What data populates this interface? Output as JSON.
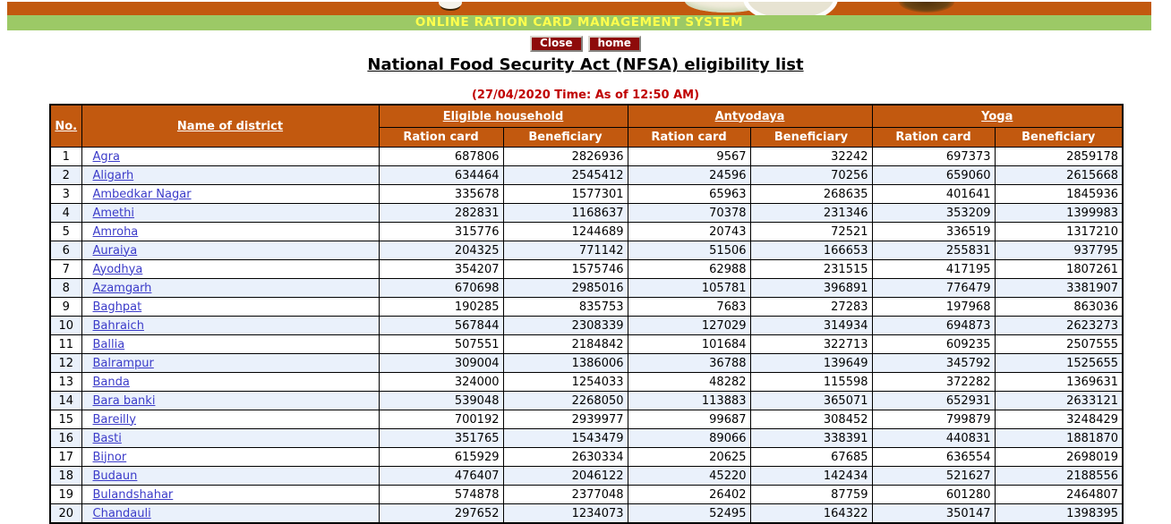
{
  "banner": {
    "system_title": "ONLINE RATION CARD MANAGEMENT SYSTEM"
  },
  "toolbar": {
    "close_label": "Close",
    "home_label": "home"
  },
  "page": {
    "title": "National Food Security Act (NFSA) eligibility list",
    "timestamp": "(27/04/2020 Time: As of 12:50 AM)"
  },
  "colors": {
    "banner_orange": "#c2590f",
    "banner_green": "#9cc966",
    "banner_text_yellow": "#ffff4d",
    "button_maroon": "#8e0b0b",
    "timestamp_red": "#c00000",
    "header_orange": "#c2590f",
    "row_alt_blue": "#eaf1fb",
    "link_blue": "#3b3bc9"
  },
  "table": {
    "columns": {
      "no": "No.",
      "district": "Name of district",
      "groups": [
        {
          "label": "Eligible household",
          "sub": [
            "Ration card",
            "Beneficiary"
          ]
        },
        {
          "label": "Antyodaya",
          "sub": [
            "Ration card",
            "Beneficiary"
          ]
        },
        {
          "label": "Yoga",
          "sub": [
            "Ration card",
            "Beneficiary"
          ]
        }
      ]
    },
    "rows": [
      {
        "no": 1,
        "district": "Agra",
        "values": [
          687806,
          2826936,
          9567,
          32242,
          697373,
          2859178
        ]
      },
      {
        "no": 2,
        "district": "Aligarh",
        "values": [
          634464,
          2545412,
          24596,
          70256,
          659060,
          2615668
        ]
      },
      {
        "no": 3,
        "district": "Ambedkar Nagar",
        "values": [
          335678,
          1577301,
          65963,
          268635,
          401641,
          1845936
        ]
      },
      {
        "no": 4,
        "district": "Amethi",
        "values": [
          282831,
          1168637,
          70378,
          231346,
          353209,
          1399983
        ]
      },
      {
        "no": 5,
        "district": "Amroha",
        "values": [
          315776,
          1244689,
          20743,
          72521,
          336519,
          1317210
        ]
      },
      {
        "no": 6,
        "district": "Auraiya",
        "values": [
          204325,
          771142,
          51506,
          166653,
          255831,
          937795
        ]
      },
      {
        "no": 7,
        "district": "Ayodhya",
        "values": [
          354207,
          1575746,
          62988,
          231515,
          417195,
          1807261
        ]
      },
      {
        "no": 8,
        "district": "Azamgarh",
        "values": [
          670698,
          2985016,
          105781,
          396891,
          776479,
          3381907
        ]
      },
      {
        "no": 9,
        "district": "Baghpat",
        "values": [
          190285,
          835753,
          7683,
          27283,
          197968,
          863036
        ]
      },
      {
        "no": 10,
        "district": "Bahraich",
        "values": [
          567844,
          2308339,
          127029,
          314934,
          694873,
          2623273
        ]
      },
      {
        "no": 11,
        "district": "Ballia",
        "values": [
          507551,
          2184842,
          101684,
          322713,
          609235,
          2507555
        ]
      },
      {
        "no": 12,
        "district": "Balrampur",
        "values": [
          309004,
          1386006,
          36788,
          139649,
          345792,
          1525655
        ]
      },
      {
        "no": 13,
        "district": "Banda",
        "values": [
          324000,
          1254033,
          48282,
          115598,
          372282,
          1369631
        ]
      },
      {
        "no": 14,
        "district": "Bara banki",
        "values": [
          539048,
          2268050,
          113883,
          365071,
          652931,
          2633121
        ]
      },
      {
        "no": 15,
        "district": "Bareilly",
        "values": [
          700192,
          2939977,
          99687,
          308452,
          799879,
          3248429
        ]
      },
      {
        "no": 16,
        "district": "Basti",
        "values": [
          351765,
          1543479,
          89066,
          338391,
          440831,
          1881870
        ]
      },
      {
        "no": 17,
        "district": "Bijnor",
        "values": [
          615929,
          2630334,
          20625,
          67685,
          636554,
          2698019
        ]
      },
      {
        "no": 18,
        "district": "Budaun",
        "values": [
          476407,
          2046122,
          45220,
          142434,
          521627,
          2188556
        ]
      },
      {
        "no": 19,
        "district": "Bulandshahar",
        "values": [
          574878,
          2377048,
          26402,
          87759,
          601280,
          2464807
        ]
      },
      {
        "no": 20,
        "district": "Chandauli",
        "values": [
          297652,
          1234073,
          52495,
          164322,
          350147,
          1398395
        ]
      }
    ]
  }
}
